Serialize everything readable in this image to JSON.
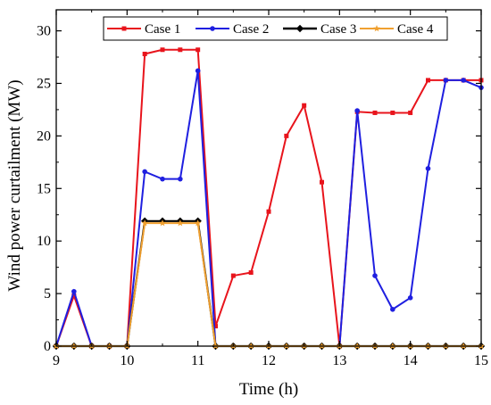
{
  "chart_data": {
    "type": "line",
    "title": "",
    "xlabel": "Time (h)",
    "ylabel": "Wind power curtailment (MW)",
    "xlim": [
      9,
      15
    ],
    "ylim": [
      0,
      32
    ],
    "xticks": [
      9,
      10,
      11,
      12,
      13,
      14,
      15
    ],
    "yticks": [
      0,
      5,
      10,
      15,
      20,
      25,
      30
    ],
    "legend_position": "top",
    "grid": false,
    "x": [
      9,
      9.25,
      9.5,
      9.75,
      10,
      10.25,
      10.5,
      10.75,
      11,
      11.25,
      11.5,
      11.75,
      12,
      12.25,
      12.5,
      12.75,
      13,
      13.25,
      13.5,
      13.75,
      14,
      14.25,
      14.5,
      14.75,
      15
    ],
    "series": [
      {
        "name": "Case 1",
        "color": "#e8141c",
        "marker": "square",
        "values": [
          0,
          4.8,
          0,
          0,
          0,
          27.8,
          28.2,
          28.2,
          28.2,
          1.9,
          6.7,
          7.0,
          12.8,
          20.0,
          22.9,
          15.6,
          0,
          22.3,
          22.2,
          22.2,
          22.2,
          25.3,
          25.3,
          25.3,
          25.3
        ]
      },
      {
        "name": "Case 2",
        "color": "#1f1fe0",
        "marker": "circle",
        "values": [
          0,
          5.2,
          0,
          0,
          0,
          16.6,
          15.9,
          15.9,
          26.2,
          0,
          0,
          0,
          0,
          0,
          0,
          0,
          0,
          22.4,
          6.7,
          3.5,
          4.6,
          16.9,
          25.3,
          25.3,
          24.6
        ]
      },
      {
        "name": "Case 3",
        "color": "#000000",
        "marker": "diamond",
        "values": [
          0,
          0,
          0,
          0,
          0,
          11.9,
          11.9,
          11.9,
          11.9,
          0,
          0,
          0,
          0,
          0,
          0,
          0,
          0,
          0,
          0,
          0,
          0,
          0,
          0,
          0,
          0
        ]
      },
      {
        "name": "Case 4",
        "color": "#f0a030",
        "marker": "star",
        "values": [
          0,
          0,
          0,
          0,
          0,
          11.7,
          11.7,
          11.7,
          11.7,
          0,
          0,
          0,
          0,
          0,
          0,
          0,
          0,
          0,
          0,
          0,
          0,
          0,
          0,
          0,
          0
        ]
      }
    ]
  }
}
